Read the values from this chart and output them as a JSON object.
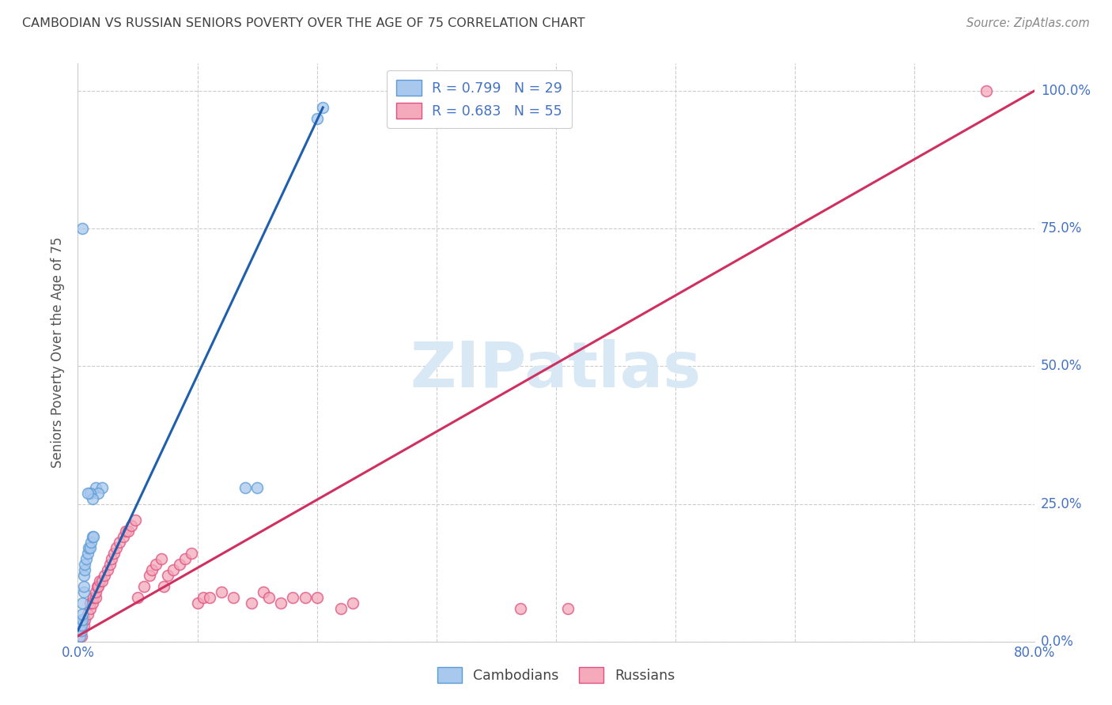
{
  "title": "CAMBODIAN VS RUSSIAN SENIORS POVERTY OVER THE AGE OF 75 CORRELATION CHART",
  "source": "Source: ZipAtlas.com",
  "ylabel": "Seniors Poverty Over the Age of 75",
  "xlim": [
    0,
    0.8
  ],
  "ylim": [
    0.0,
    1.05
  ],
  "xticks": [
    0.0,
    0.1,
    0.2,
    0.3,
    0.4,
    0.5,
    0.6,
    0.7,
    0.8
  ],
  "xticklabels": [
    "0.0%",
    "",
    "",
    "",
    "",
    "",
    "",
    "",
    "80.0%"
  ],
  "ytick_positions": [
    0.0,
    0.25,
    0.5,
    0.75,
    1.0
  ],
  "ytick_labels": [
    "0.0%",
    "25.0%",
    "50.0%",
    "75.0%",
    "100.0%"
  ],
  "cambodian_color": "#A8C8EE",
  "cambodian_edge": "#5B9BD5",
  "russian_color": "#F4AABB",
  "russian_edge": "#E05080",
  "title_color": "#404040",
  "axis_label_color": "#555555",
  "tick_color": "#4472C4",
  "grid_color": "#CCCCCC",
  "legend_R_N_color": "#4472C4",
  "watermark_color": "#D8E8F5",
  "legend_cambodian_label": "R = 0.799   N = 29",
  "legend_russian_label": "R = 0.683   N = 55",
  "legend_foot_cambodians": "Cambodians",
  "legend_foot_russians": "Russians",
  "cambodian_points": [
    [
      0.002,
      0.01
    ],
    [
      0.003,
      0.02
    ],
    [
      0.003,
      0.03
    ],
    [
      0.004,
      0.04
    ],
    [
      0.004,
      0.05
    ],
    [
      0.004,
      0.07
    ],
    [
      0.005,
      0.09
    ],
    [
      0.005,
      0.1
    ],
    [
      0.005,
      0.12
    ],
    [
      0.006,
      0.13
    ],
    [
      0.006,
      0.14
    ],
    [
      0.007,
      0.15
    ],
    [
      0.008,
      0.16
    ],
    [
      0.009,
      0.17
    ],
    [
      0.01,
      0.17
    ],
    [
      0.011,
      0.18
    ],
    [
      0.012,
      0.19
    ],
    [
      0.013,
      0.19
    ],
    [
      0.015,
      0.28
    ],
    [
      0.02,
      0.28
    ],
    [
      0.004,
      0.75
    ],
    [
      0.017,
      0.27
    ],
    [
      0.2,
      0.95
    ],
    [
      0.205,
      0.97
    ],
    [
      0.14,
      0.28
    ],
    [
      0.15,
      0.28
    ],
    [
      0.01,
      0.27
    ],
    [
      0.012,
      0.26
    ],
    [
      0.008,
      0.27
    ]
  ],
  "russian_points": [
    [
      0.003,
      0.01
    ],
    [
      0.005,
      0.03
    ],
    [
      0.006,
      0.04
    ],
    [
      0.008,
      0.05
    ],
    [
      0.01,
      0.06
    ],
    [
      0.01,
      0.07
    ],
    [
      0.012,
      0.07
    ],
    [
      0.013,
      0.08
    ],
    [
      0.015,
      0.08
    ],
    [
      0.015,
      0.09
    ],
    [
      0.016,
      0.1
    ],
    [
      0.017,
      0.1
    ],
    [
      0.018,
      0.11
    ],
    [
      0.02,
      0.11
    ],
    [
      0.022,
      0.12
    ],
    [
      0.025,
      0.13
    ],
    [
      0.027,
      0.14
    ],
    [
      0.028,
      0.15
    ],
    [
      0.03,
      0.16
    ],
    [
      0.032,
      0.17
    ],
    [
      0.035,
      0.18
    ],
    [
      0.038,
      0.19
    ],
    [
      0.04,
      0.2
    ],
    [
      0.042,
      0.2
    ],
    [
      0.045,
      0.21
    ],
    [
      0.048,
      0.22
    ],
    [
      0.05,
      0.08
    ],
    [
      0.055,
      0.1
    ],
    [
      0.06,
      0.12
    ],
    [
      0.062,
      0.13
    ],
    [
      0.065,
      0.14
    ],
    [
      0.07,
      0.15
    ],
    [
      0.072,
      0.1
    ],
    [
      0.075,
      0.12
    ],
    [
      0.08,
      0.13
    ],
    [
      0.085,
      0.14
    ],
    [
      0.09,
      0.15
    ],
    [
      0.095,
      0.16
    ],
    [
      0.1,
      0.07
    ],
    [
      0.105,
      0.08
    ],
    [
      0.11,
      0.08
    ],
    [
      0.12,
      0.09
    ],
    [
      0.13,
      0.08
    ],
    [
      0.145,
      0.07
    ],
    [
      0.155,
      0.09
    ],
    [
      0.16,
      0.08
    ],
    [
      0.17,
      0.07
    ],
    [
      0.18,
      0.08
    ],
    [
      0.19,
      0.08
    ],
    [
      0.2,
      0.08
    ],
    [
      0.22,
      0.06
    ],
    [
      0.23,
      0.07
    ],
    [
      0.37,
      0.06
    ],
    [
      0.41,
      0.06
    ],
    [
      0.76,
      1.0
    ]
  ],
  "cambodian_trend_x": [
    0.0,
    0.205
  ],
  "cambodian_trend_y": [
    0.02,
    0.97
  ],
  "russian_trend_x": [
    0.0,
    0.8
  ],
  "russian_trend_y": [
    0.01,
    1.0
  ],
  "cambodian_trend_color": "#1F5FAD",
  "russian_trend_color": "#D03060",
  "marker_size": 100,
  "marker_linewidth": 1.2,
  "bg_color": "#FFFFFF"
}
